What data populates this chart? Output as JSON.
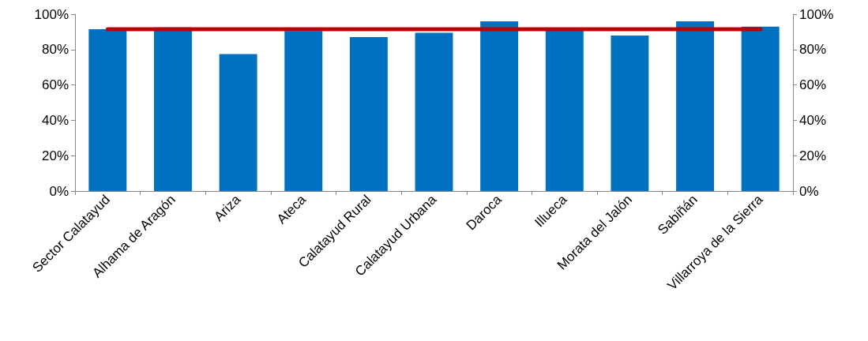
{
  "chart_data": {
    "type": "bar",
    "categories": [
      "Sector Calatayud",
      "Alhama de Aragón",
      "Ariza",
      "Ateca",
      "Calatayud Rural",
      "Calatayud Urbana",
      "Daroca",
      "Illueca",
      "Morata del Jalón",
      "Sabiñán",
      "Villarroya de la Sierra"
    ],
    "series": [
      {
        "color": "#0070c0",
        "values": [
          91.5,
          92.5,
          77.5,
          90.5,
          87,
          89.5,
          96,
          91,
          88,
          96,
          93
        ]
      },
      {
        "type": "line",
        "color": "#c00000",
        "marker": "none",
        "values": [
          91.5,
          91.5,
          91.5,
          91.5,
          91.5,
          91.5,
          91.5,
          91.5,
          91.5,
          91.5,
          91.5
        ]
      }
    ],
    "ylim": [
      0,
      100
    ],
    "yticks": [
      {
        "value": 0,
        "label": "0%"
      },
      {
        "value": 20,
        "label": "20%"
      },
      {
        "value": 40,
        "label": "40%"
      },
      {
        "value": 60,
        "label": "60%"
      },
      {
        "value": 80,
        "label": "80%"
      },
      {
        "value": 100,
        "label": "100%"
      }
    ],
    "y2lim": [
      0,
      100
    ],
    "y2ticks": [
      {
        "value": 0,
        "label": "0%"
      },
      {
        "value": 20,
        "label": "20%"
      },
      {
        "value": 40,
        "label": "40%"
      },
      {
        "value": 60,
        "label": "60%"
      },
      {
        "value": 80,
        "label": "80%"
      },
      {
        "value": 100,
        "label": "100%"
      }
    ],
    "grid": false
  }
}
